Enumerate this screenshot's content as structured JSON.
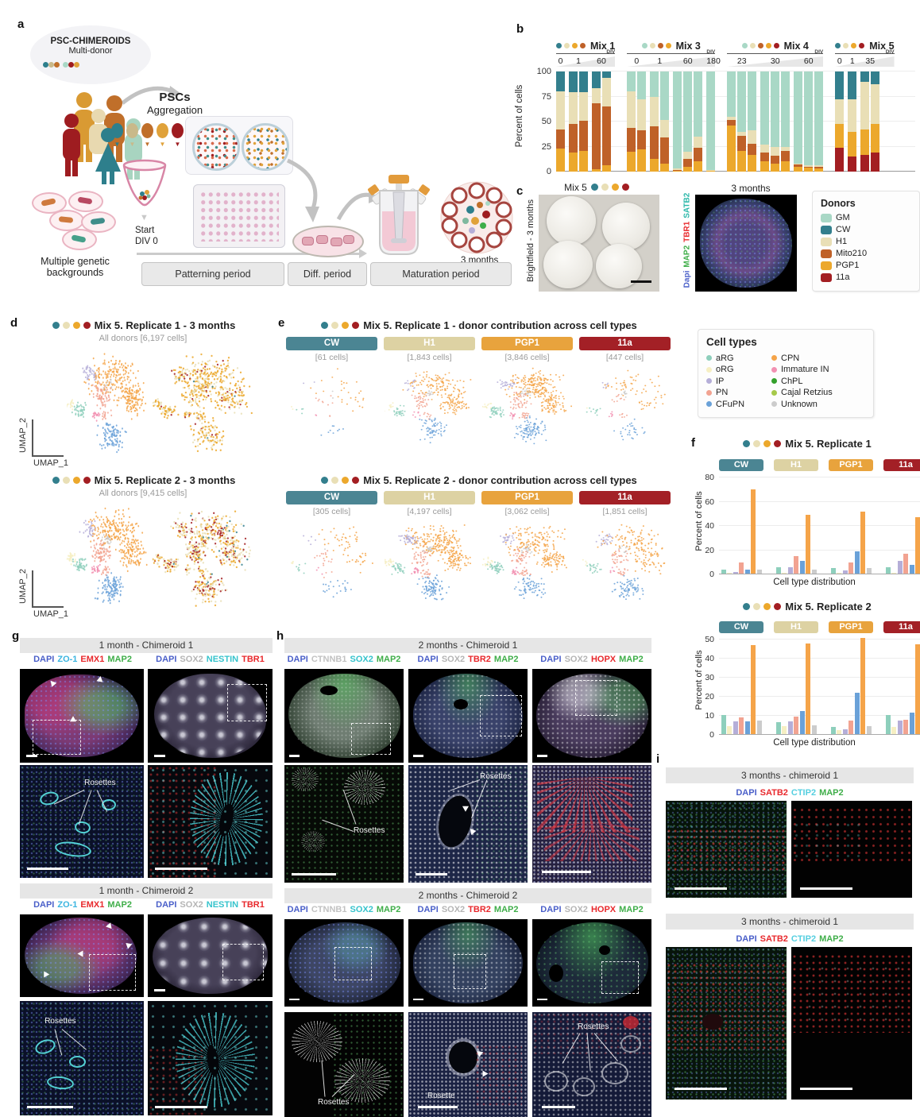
{
  "panel_labels": {
    "a": "a",
    "b": "b",
    "c": "c",
    "d": "d",
    "e": "e",
    "f": "f",
    "g": "g",
    "h": "h",
    "i": "i"
  },
  "colors": {
    "donors": {
      "GM": "#a9d8c6",
      "CW": "#337f8d",
      "H1": "#e9dfb6",
      "Mito210": "#bf6128",
      "PGP1": "#eca82c",
      "11a": "#a31e22"
    },
    "donor_banners": {
      "CW": "#4b8593",
      "H1": "#ddd2a3",
      "PGP1": "#e8a33d",
      "11a": "#a32026"
    },
    "cell_types": {
      "aRG": "#8ecfbc",
      "oRG": "#f6efc3",
      "IP": "#b5aed8",
      "PN": "#f2a391",
      "CFuPN": "#6aa1d8",
      "CPN": "#f5a449",
      "Immature IN": "#f291b2",
      "ChPL": "#33a02c",
      "Cajal Retzius": "#a6c94a",
      "Unknown": "#cccccc"
    }
  },
  "panel_a": {
    "bubble_title": "PSC-CHIMEROIDS",
    "bubble_subtitle": "Multi-donor",
    "pscs_title": "PSCs",
    "pscs_subtitle": "Aggregation",
    "left_caption_line1": "Multiple genetic",
    "left_caption_line2": "backgrounds",
    "start_line1": "Start",
    "start_line2": "DIV 0",
    "periods": [
      "Patterning period",
      "Diff. period",
      "Maturation period"
    ],
    "organoid_label": "3 months"
  },
  "panel_c": {
    "mix_label": "Mix 5",
    "mix_dot_donors": [
      "CW",
      "H1",
      "PGP1",
      "11a"
    ],
    "brightfield_label": "Brightfield - 3 months",
    "fluoro_title": "3 months",
    "fluoro_markers": [
      {
        "t": "Dapi",
        "c": "#4a5fc9"
      },
      {
        "t": "MAP2",
        "c": "#3fae49"
      },
      {
        "t": "TBR1",
        "c": "#e8282c"
      },
      {
        "t": "SATB2",
        "c": "#2ab7a9"
      }
    ],
    "legend_title": "Donors",
    "legend_donors": [
      "GM",
      "CW",
      "H1",
      "Mito210",
      "PGP1",
      "11a"
    ]
  },
  "panel_d": {
    "mix_dot_donors": [
      "CW",
      "H1",
      "PGP1",
      "11a"
    ],
    "rep1_title": "Mix 5. Replicate 1 - 3 months",
    "rep1_subtitle": "All donors [6,197 cells]",
    "rep2_title": "Mix 5. Replicate 2 - 3 months",
    "rep2_subtitle": "All donors [9,415 cells]",
    "axis_x": "UMAP_1",
    "axis_y": "UMAP_2"
  },
  "panel_e": {
    "mix_dot_donors": [
      "CW",
      "H1",
      "PGP1",
      "11a"
    ],
    "rep1_title": "Mix 5. Replicate 1 - donor contribution across cell types",
    "rep2_title": "Mix 5. Replicate 2 - donor contribution across cell types",
    "donors": [
      "CW",
      "H1",
      "PGP1",
      "11a"
    ],
    "rep1_counts": [
      "[61 cells]",
      "[1,843 cells]",
      "[3,846 cells]",
      "[447 cells]"
    ],
    "rep2_counts": [
      "[305 cells]",
      "[4,197 cells]",
      "[3,062 cells]",
      "[1,851 cells]"
    ]
  },
  "cell_types_legend": {
    "title": "Cell types",
    "col1": [
      "aRG",
      "oRG",
      "IP",
      "PN",
      "CFuPN"
    ],
    "col2": [
      "CPN",
      "Immature IN",
      "ChPL",
      "Cajal Retzius",
      "Unknown"
    ]
  },
  "panel_f": {
    "mix_dot_donors": [
      "CW",
      "H1",
      "PGP1",
      "11a"
    ],
    "rep1_title": "Mix 5. Replicate 1",
    "rep2_title": "Mix 5. Replicate 2"
  },
  "panel_g": {
    "headers": [
      "1 month - Chimeroid 1",
      "1 month - Chimeroid 2"
    ],
    "markers_left": [
      {
        "t": "DAPI",
        "c": "#4a5fc9"
      },
      {
        "t": "ZO-1",
        "c": "#3bb5e0"
      },
      {
        "t": "EMX1",
        "c": "#e8282c"
      },
      {
        "t": "MAP2",
        "c": "#3fae49"
      }
    ],
    "markers_right": [
      {
        "t": "DAPI",
        "c": "#4a5fc9"
      },
      {
        "t": "SOX2",
        "c": "#b5b5b5"
      },
      {
        "t": "NESTIN",
        "c": "#35c3cc"
      },
      {
        "t": "TBR1",
        "c": "#e8282c"
      }
    ],
    "rosettes_label": "Rosettes"
  },
  "panel_h": {
    "headers": [
      "2 months -  Chimeroid 1",
      "2 months -  Chimeroid 2"
    ],
    "markers": [
      [
        {
          "t": "DAPI",
          "c": "#4a5fc9"
        },
        {
          "t": "CTNNB1",
          "c": "#c2c2c2"
        },
        {
          "t": "SOX2",
          "c": "#35c3cc"
        },
        {
          "t": "MAP2",
          "c": "#3fae49"
        }
      ],
      [
        {
          "t": "DAPI",
          "c": "#4a5fc9"
        },
        {
          "t": "SOX2",
          "c": "#b5b5b5"
        },
        {
          "t": "TBR2",
          "c": "#e8282c"
        },
        {
          "t": "MAP2",
          "c": "#3fae49"
        }
      ],
      [
        {
          "t": "DAPI",
          "c": "#4a5fc9"
        },
        {
          "t": "SOX2",
          "c": "#b5b5b5"
        },
        {
          "t": "HOPX",
          "c": "#e8282c"
        },
        {
          "t": "MAP2",
          "c": "#3fae49"
        }
      ]
    ],
    "labels": {
      "rosettes": "Rosettes",
      "rosette": "Rosette"
    }
  },
  "panel_i": {
    "headers": [
      "3 months -  chimeroid 1",
      "3 months -  chimeroid 1"
    ],
    "markers": [
      {
        "t": "DAPI",
        "c": "#4a5fc9"
      },
      {
        "t": "SATB2",
        "c": "#e8282c"
      },
      {
        "t": "CTIP2",
        "c": "#55cfe0"
      },
      {
        "t": "MAP2",
        "c": "#3fae49"
      }
    ]
  },
  "chart_data": [
    {
      "id": "panel_b",
      "type": "stacked_bar",
      "ylabel": "Percent of cells",
      "ylim": [
        0,
        100
      ],
      "yticks": [
        0,
        25,
        50,
        75,
        100
      ],
      "div_axis_label": "DIV",
      "groups": [
        {
          "name": "Mix 1",
          "dot_donors": [
            "CW",
            "H1",
            "PGP1",
            "Mito210"
          ],
          "stack_order": [
            "PGP1",
            "Mito210",
            "H1",
            "CW"
          ],
          "subgroups": [
            {
              "div": "0",
              "bars": [
                [
                  23,
                  19,
                  38,
                  20
                ]
              ]
            },
            {
              "div": "1",
              "bars": [
                [
                  19,
                  29,
                  31,
                  21
                ],
                [
                  21,
                  30,
                  28,
                  21
                ]
              ]
            },
            {
              "div": "60",
              "bars": [
                [
                  2,
                  66,
                  15,
                  17
                ],
                [
                  6,
                  59,
                  29,
                  6
                ]
              ]
            }
          ]
        },
        {
          "name": "Mix 3",
          "dot_donors": [
            "GM",
            "H1",
            "Mito210",
            "PGP1"
          ],
          "stack_order": [
            "PGP1",
            "Mito210",
            "H1",
            "GM"
          ],
          "subgroups": [
            {
              "div": "0",
              "bars": [
                [
                  20,
                  24,
                  36,
                  20
                ],
                [
                  22,
                  19,
                  31,
                  28
                ]
              ]
            },
            {
              "div": "1",
              "bars": [
                [
                  13,
                  32,
                  30,
                  25
                ],
                [
                  8,
                  26,
                  18,
                  48
                ]
              ]
            },
            {
              "div": "60",
              "bars": [
                [
                  1,
                  1,
                  1,
                  97
                ],
                [
                  5,
                  8,
                  7,
                  80
                ],
                [
                  10,
                  14,
                  11,
                  65
                ]
              ]
            },
            {
              "div": "180",
              "bars": [
                [
                  1,
                  0,
                  1,
                  98
                ]
              ]
            }
          ]
        },
        {
          "name": "Mix 4",
          "dot_donors": [
            "GM",
            "H1",
            "Mito210",
            "PGP1",
            "11a"
          ],
          "stack_order": [
            "PGP1",
            "Mito210",
            "H1",
            "GM"
          ],
          "subgroups": [
            {
              "div": "23",
              "bars": [
                [
                  46,
                  6,
                  3,
                  45
                ],
                [
                  21,
                  15,
                  4,
                  60
                ],
                [
                  17,
                  11,
                  13,
                  59
                ]
              ]
            },
            {
              "div": "30",
              "bars": [
                [
                  10,
                  9,
                  8,
                  73
                ],
                [
                  8,
                  8,
                  9,
                  75
                ],
                [
                  10,
                  11,
                  4,
                  75
                ]
              ]
            },
            {
              "div": "60",
              "bars": [
                [
                  5,
                  2,
                  1,
                  92
                ],
                [
                  4,
                  1,
                  1,
                  94
                ],
                [
                  3,
                  2,
                  1,
                  94
                ]
              ]
            }
          ]
        },
        {
          "name": "Mix 5",
          "dot_donors": [
            "CW",
            "H1",
            "PGP1",
            "11a"
          ],
          "stack_order": [
            "11a",
            "PGP1",
            "H1",
            "CW"
          ],
          "subgroups": [
            {
              "div": "0",
              "bars": [
                [
                  24,
                  24,
                  24,
                  28
                ]
              ]
            },
            {
              "div": "1",
              "bars": [
                [
                  15,
                  25,
                  32,
                  28
                ]
              ]
            },
            {
              "div": "35",
              "bars": [
                [
                  17,
                  25,
                  48,
                  10
                ],
                [
                  19,
                  29,
                  39,
                  13
                ]
              ]
            }
          ]
        }
      ]
    },
    {
      "id": "panel_f_rep1",
      "type": "grouped_bar",
      "title": "Mix 5. Replicate 1",
      "xlabel": "Cell type distribution",
      "ylabel": "Percent of cells",
      "ylim": [
        0,
        80
      ],
      "yticks": [
        0,
        20,
        40,
        60,
        80
      ],
      "series_cell_types": [
        "aRG",
        "oRG",
        "IP",
        "PN",
        "CFuPN",
        "CPN",
        "Unknown"
      ],
      "groups": [
        {
          "donor": "CW",
          "values": [
            4,
            1,
            2,
            10,
            4,
            70,
            4
          ]
        },
        {
          "donor": "H1",
          "values": [
            6,
            1,
            6,
            15,
            11,
            49,
            4
          ]
        },
        {
          "donor": "PGP1",
          "values": [
            5,
            1,
            3,
            10,
            19,
            52,
            5
          ]
        },
        {
          "donor": "11a",
          "values": [
            6,
            1,
            11,
            17,
            8,
            47,
            3
          ]
        }
      ]
    },
    {
      "id": "panel_f_rep2",
      "type": "grouped_bar",
      "title": "Mix 5. Replicate 2",
      "xlabel": "Cell type distribution",
      "ylabel": "Percent of cells",
      "ylim": [
        0,
        50
      ],
      "yticks": [
        0,
        10,
        20,
        30,
        40,
        50
      ],
      "series_cell_types": [
        "aRG",
        "oRG",
        "IP",
        "PN",
        "CFuPN",
        "CPN",
        "Unknown"
      ],
      "groups": [
        {
          "donor": "CW",
          "values": [
            10.5,
            4.5,
            7,
            9,
            7,
            47,
            7.5
          ]
        },
        {
          "donor": "H1",
          "values": [
            6.5,
            4.5,
            7,
            9.5,
            12.5,
            48,
            5
          ]
        },
        {
          "donor": "PGP1",
          "values": [
            4,
            2.5,
            3,
            7.5,
            22,
            51,
            4.5
          ]
        },
        {
          "donor": "11a",
          "values": [
            10.5,
            4,
            7.5,
            8,
            11.5,
            47.5,
            4.5
          ]
        }
      ]
    }
  ]
}
